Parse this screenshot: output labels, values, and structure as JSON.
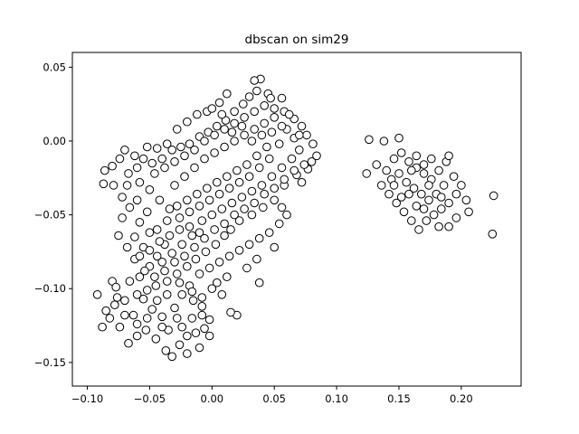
{
  "chart_data": {
    "type": "scatter",
    "title": "dbscan on sim29",
    "xlabel": "",
    "ylabel": "",
    "xlim": [
      -0.112,
      0.248
    ],
    "ylim": [
      -0.166,
      0.06
    ],
    "xticks": [
      -0.1,
      -0.05,
      0.0,
      0.05,
      0.1,
      0.15,
      0.2
    ],
    "xtick_labels": [
      "−0.10",
      "−0.05",
      "0.00",
      "0.05",
      "0.10",
      "0.15",
      "0.20"
    ],
    "yticks": [
      -0.15,
      -0.1,
      -0.05,
      0.0,
      0.05
    ],
    "ytick_labels": [
      "−0.15",
      "−0.10",
      "−0.05",
      "0.00",
      "0.05"
    ],
    "grid": false,
    "marker": {
      "face": "#ffffff",
      "edge": "#000000"
    },
    "series": [
      {
        "name": "",
        "points": [
          [
            -0.07,
            -0.006
          ],
          [
            -0.062,
            -0.01
          ],
          [
            -0.055,
            -0.012
          ],
          [
            -0.048,
            -0.015
          ],
          [
            -0.04,
            -0.012
          ],
          [
            -0.032,
            -0.006
          ],
          [
            -0.025,
            -0.004
          ],
          [
            -0.018,
            -0.002
          ],
          [
            -0.01,
            0.003
          ],
          [
            -0.003,
            0.006
          ],
          [
            0.004,
            0.01
          ],
          [
            0.011,
            0.014
          ],
          [
            0.018,
            0.02
          ],
          [
            0.025,
            0.025
          ],
          [
            0.03,
            0.03
          ],
          [
            0.036,
            0.034
          ],
          [
            0.045,
            0.032
          ],
          [
            0.039,
            0.042
          ],
          [
            0.047,
            0.029
          ],
          [
            0.056,
            0.029
          ],
          [
            0.058,
            0.02
          ],
          [
            0.066,
            0.015
          ],
          [
            0.072,
            0.01
          ],
          [
            0.076,
            0.004
          ],
          [
            0.081,
            -0.002
          ],
          [
            0.08,
            -0.014
          ],
          [
            0.068,
            -0.023
          ],
          [
            0.058,
            -0.03
          ],
          [
            0.05,
            -0.04
          ],
          [
            0.041,
            -0.045
          ],
          [
            0.032,
            -0.05
          ],
          [
            0.022,
            -0.054
          ],
          [
            0.015,
            -0.06
          ],
          [
            0.01,
            -0.064
          ],
          [
            0.003,
            -0.07
          ],
          [
            -0.005,
            -0.075
          ],
          [
            -0.013,
            -0.08
          ],
          [
            -0.02,
            -0.085
          ],
          [
            -0.028,
            -0.09
          ],
          [
            -0.036,
            -0.095
          ],
          [
            -0.045,
            -0.098
          ],
          [
            -0.052,
            -0.101
          ],
          [
            -0.06,
            -0.104
          ],
          [
            -0.07,
            -0.108
          ],
          [
            -0.078,
            -0.111
          ],
          [
            -0.085,
            -0.115
          ],
          [
            -0.092,
            -0.104
          ],
          [
            -0.08,
            -0.095
          ],
          [
            -0.077,
            -0.099
          ],
          [
            -0.088,
            -0.126
          ],
          [
            -0.082,
            -0.12
          ],
          [
            -0.074,
            -0.126
          ],
          [
            -0.067,
            -0.137
          ],
          [
            -0.06,
            -0.132
          ],
          [
            -0.053,
            -0.128
          ],
          [
            -0.045,
            -0.134
          ],
          [
            -0.037,
            -0.142
          ],
          [
            -0.032,
            -0.146
          ],
          [
            -0.026,
            -0.138
          ],
          [
            -0.02,
            -0.132
          ],
          [
            -0.013,
            -0.13
          ],
          [
            -0.006,
            -0.127
          ],
          [
            -0.002,
            -0.121
          ],
          [
            -0.008,
            -0.112
          ],
          [
            -0.015,
            -0.108
          ],
          [
            -0.024,
            -0.104
          ],
          [
            -0.03,
            -0.113
          ],
          [
            -0.04,
            -0.119
          ],
          [
            -0.048,
            -0.114
          ],
          [
            -0.055,
            -0.107
          ],
          [
            -0.063,
            -0.118
          ],
          [
            -0.066,
            -0.095
          ],
          [
            -0.058,
            -0.092
          ],
          [
            -0.05,
            -0.085
          ],
          [
            -0.044,
            -0.078
          ],
          [
            -0.038,
            -0.07
          ],
          [
            -0.05,
            -0.062
          ],
          [
            -0.058,
            -0.055
          ],
          [
            -0.062,
            -0.065
          ],
          [
            -0.055,
            -0.072
          ],
          [
            -0.066,
            -0.045
          ],
          [
            -0.072,
            -0.038
          ],
          [
            -0.079,
            -0.03
          ],
          [
            -0.086,
            -0.02
          ],
          [
            -0.087,
            -0.029
          ],
          [
            -0.08,
            -0.017
          ],
          [
            -0.074,
            -0.012
          ],
          [
            -0.067,
            -0.022
          ],
          [
            -0.058,
            -0.028
          ],
          [
            -0.05,
            -0.033
          ],
          [
            -0.042,
            -0.04
          ],
          [
            -0.034,
            -0.046
          ],
          [
            -0.026,
            -0.052
          ],
          [
            -0.018,
            -0.058
          ],
          [
            -0.01,
            -0.062
          ],
          [
            -0.03,
            -0.03
          ],
          [
            -0.022,
            -0.024
          ],
          [
            -0.014,
            -0.018
          ],
          [
            -0.006,
            -0.012
          ],
          [
            0.002,
            -0.008
          ],
          [
            0.01,
            -0.004
          ],
          [
            0.018,
            0.0
          ],
          [
            0.026,
            0.004
          ],
          [
            0.034,
            0.008
          ],
          [
            0.042,
            0.012
          ],
          [
            0.05,
            0.016
          ],
          [
            0.06,
            0.008
          ],
          [
            0.066,
            0.002
          ],
          [
            0.07,
            -0.006
          ],
          [
            0.064,
            -0.012
          ],
          [
            0.056,
            -0.018
          ],
          [
            0.048,
            -0.024
          ],
          [
            0.04,
            -0.03
          ],
          [
            0.032,
            -0.034
          ],
          [
            0.024,
            -0.038
          ],
          [
            0.016,
            -0.042
          ],
          [
            0.008,
            -0.046
          ],
          [
            0.0,
            -0.05
          ],
          [
            -0.008,
            -0.054
          ],
          [
            -0.016,
            -0.064
          ],
          [
            -0.024,
            -0.07
          ],
          [
            -0.032,
            -0.076
          ],
          [
            -0.04,
            -0.082
          ],
          [
            -0.01,
            -0.09
          ],
          [
            -0.002,
            -0.086
          ],
          [
            0.006,
            -0.082
          ],
          [
            0.014,
            -0.078
          ],
          [
            0.022,
            -0.074
          ],
          [
            0.03,
            -0.07
          ],
          [
            0.038,
            -0.066
          ],
          [
            0.046,
            -0.062
          ],
          [
            0.054,
            -0.056
          ],
          [
            0.06,
            -0.05
          ],
          [
            0.036,
            -0.08
          ],
          [
            0.028,
            -0.086
          ],
          [
            0.012,
            -0.092
          ],
          [
            0.004,
            -0.096
          ],
          [
            -0.018,
            -0.098
          ],
          [
            -0.036,
            -0.104
          ],
          [
            -0.028,
            -0.12
          ],
          [
            -0.035,
            -0.128
          ],
          [
            0.038,
            -0.096
          ],
          [
            0.05,
            -0.072
          ],
          [
            0.056,
            -0.045
          ],
          [
            0.072,
            -0.028
          ],
          [
            0.077,
            -0.019
          ],
          [
            0.084,
            -0.01
          ],
          [
            0.02,
            -0.118
          ],
          [
            0.015,
            -0.116
          ],
          [
            -0.01,
            -0.14
          ],
          [
            -0.02,
            -0.144
          ],
          [
            -0.002,
            -0.132
          ],
          [
            0.034,
            0.041
          ],
          [
            0.012,
            0.032
          ],
          [
            0.006,
            0.026
          ],
          [
            -0.004,
            0.02
          ],
          [
            -0.012,
            0.018
          ],
          [
            -0.02,
            0.013
          ],
          [
            -0.028,
            0.008
          ],
          [
            -0.036,
            -0.002
          ],
          [
            -0.044,
            -0.005
          ],
          [
            -0.052,
            -0.004
          ],
          [
            -0.06,
            -0.018
          ],
          [
            -0.068,
            -0.03
          ],
          [
            -0.072,
            -0.052
          ],
          [
            -0.075,
            -0.064
          ],
          [
            -0.068,
            -0.072
          ],
          [
            -0.062,
            -0.08
          ],
          [
            -0.054,
            -0.088
          ],
          [
            -0.046,
            -0.092
          ],
          [
            -0.038,
            -0.088
          ],
          [
            -0.03,
            -0.082
          ],
          [
            -0.022,
            -0.078
          ],
          [
            -0.014,
            -0.072
          ],
          [
            -0.006,
            -0.066
          ],
          [
            0.002,
            -0.06
          ],
          [
            0.01,
            -0.056
          ],
          [
            0.018,
            -0.05
          ],
          [
            0.026,
            -0.046
          ],
          [
            0.034,
            -0.042
          ],
          [
            0.042,
            -0.036
          ],
          [
            0.05,
            -0.032
          ],
          [
            0.058,
            -0.026
          ],
          [
            0.066,
            -0.02
          ],
          [
            0.074,
            -0.016
          ],
          [
            0.044,
            -0.004
          ],
          [
            0.036,
            -0.01
          ],
          [
            0.028,
            -0.016
          ],
          [
            0.02,
            -0.02
          ],
          [
            0.012,
            -0.024
          ],
          [
            0.004,
            -0.028
          ],
          [
            -0.004,
            -0.032
          ],
          [
            -0.012,
            -0.036
          ],
          [
            -0.02,
            -0.04
          ],
          [
            -0.028,
            -0.044
          ],
          [
            -0.036,
            -0.054
          ],
          [
            -0.044,
            -0.06
          ],
          [
            -0.052,
            -0.048
          ],
          [
            -0.06,
            -0.04
          ],
          [
            -0.046,
            -0.022
          ],
          [
            -0.038,
            -0.018
          ],
          [
            -0.03,
            -0.014
          ],
          [
            -0.022,
            -0.01
          ],
          [
            -0.014,
            -0.006
          ],
          [
            -0.006,
            0.0
          ],
          [
            0.002,
            0.004
          ],
          [
            0.01,
            0.008
          ],
          [
            0.018,
            0.012
          ],
          [
            0.026,
            0.016
          ],
          [
            0.034,
            0.02
          ],
          [
            0.042,
            0.024
          ],
          [
            0.05,
            0.022
          ],
          [
            0.056,
            0.01
          ],
          [
            0.062,
            0.018
          ],
          [
            0.07,
            0.004
          ],
          [
            0.0,
            0.022
          ],
          [
            0.008,
            0.018
          ],
          [
            0.016,
            0.006
          ],
          [
            0.024,
            0.01
          ],
          [
            0.032,
            0.0
          ],
          [
            0.04,
            0.004
          ],
          [
            0.048,
            0.006
          ],
          [
            0.054,
            -0.002
          ],
          [
            0.046,
            -0.012
          ],
          [
            0.038,
            -0.018
          ],
          [
            0.03,
            -0.024
          ],
          [
            0.022,
            -0.028
          ],
          [
            0.014,
            -0.032
          ],
          [
            0.006,
            -0.036
          ],
          [
            -0.002,
            -0.04
          ],
          [
            -0.01,
            -0.044
          ],
          [
            -0.018,
            -0.048
          ],
          [
            -0.026,
            -0.06
          ],
          [
            -0.034,
            -0.064
          ],
          [
            -0.042,
            -0.068
          ],
          [
            -0.05,
            -0.074
          ],
          [
            -0.058,
            -0.078
          ],
          [
            -0.026,
            -0.096
          ],
          [
            -0.016,
            -0.102
          ],
          [
            -0.008,
            -0.106
          ],
          [
            0.0,
            -0.1
          ],
          [
            0.008,
            -0.104
          ],
          [
            -0.044,
            -0.108
          ],
          [
            -0.052,
            -0.12
          ],
          [
            -0.06,
            -0.124
          ],
          [
            -0.07,
            -0.118
          ],
          [
            -0.076,
            -0.106
          ],
          [
            -0.04,
            -0.126
          ],
          [
            -0.024,
            -0.126
          ],
          [
            -0.016,
            -0.12
          ],
          [
            -0.008,
            -0.118
          ],
          [
            0.126,
            0.001
          ],
          [
            0.138,
            0.0
          ],
          [
            0.15,
            0.002
          ],
          [
            0.124,
            -0.022
          ],
          [
            0.132,
            -0.016
          ],
          [
            0.14,
            -0.02
          ],
          [
            0.146,
            -0.012
          ],
          [
            0.152,
            -0.008
          ],
          [
            0.158,
            -0.014
          ],
          [
            0.164,
            -0.01
          ],
          [
            0.17,
            -0.016
          ],
          [
            0.176,
            -0.012
          ],
          [
            0.182,
            -0.02
          ],
          [
            0.188,
            -0.014
          ],
          [
            0.194,
            -0.024
          ],
          [
            0.2,
            -0.03
          ],
          [
            0.196,
            -0.036
          ],
          [
            0.19,
            -0.042
          ],
          [
            0.184,
            -0.046
          ],
          [
            0.178,
            -0.05
          ],
          [
            0.172,
            -0.054
          ],
          [
            0.166,
            -0.06
          ],
          [
            0.16,
            -0.054
          ],
          [
            0.154,
            -0.048
          ],
          [
            0.148,
            -0.042
          ],
          [
            0.142,
            -0.036
          ],
          [
            0.136,
            -0.03
          ],
          [
            0.144,
            -0.026
          ],
          [
            0.15,
            -0.022
          ],
          [
            0.156,
            -0.028
          ],
          [
            0.162,
            -0.032
          ],
          [
            0.168,
            -0.036
          ],
          [
            0.174,
            -0.04
          ],
          [
            0.18,
            -0.036
          ],
          [
            0.186,
            -0.03
          ],
          [
            0.176,
            -0.026
          ],
          [
            0.17,
            -0.022
          ],
          [
            0.164,
            -0.018
          ],
          [
            0.158,
            -0.036
          ],
          [
            0.164,
            -0.044
          ],
          [
            0.17,
            -0.046
          ],
          [
            0.182,
            -0.058
          ],
          [
            0.19,
            -0.058
          ],
          [
            0.196,
            -0.052
          ],
          [
            0.206,
            -0.048
          ],
          [
            0.204,
            -0.04
          ],
          [
            0.19,
            -0.01
          ],
          [
            0.226,
            -0.037
          ],
          [
            0.225,
            -0.063
          ],
          [
            0.152,
            -0.038
          ],
          [
            0.146,
            -0.03
          ],
          [
            0.16,
            -0.02
          ],
          [
            0.174,
            -0.03
          ],
          [
            0.184,
            -0.038
          ]
        ]
      }
    ]
  }
}
